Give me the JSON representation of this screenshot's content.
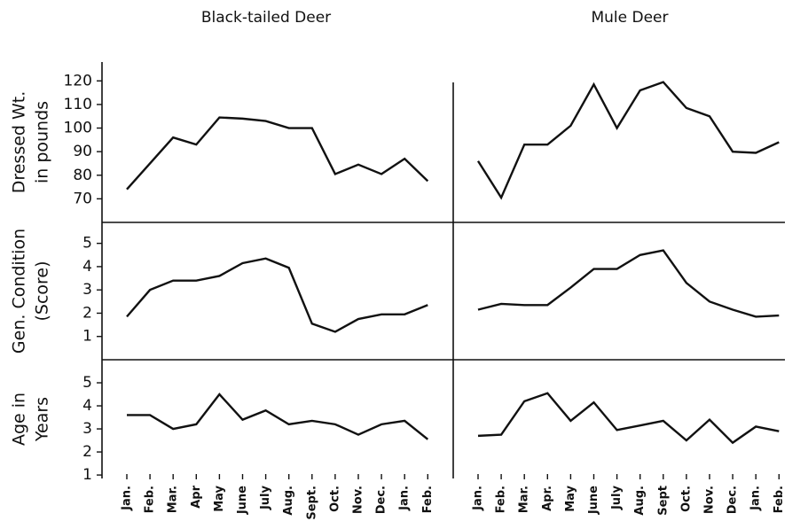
{
  "chart_data": {
    "type": "line",
    "color": "#111111",
    "columns": [
      {
        "title": "Black-tailed Deer",
        "categories": [
          "Jan.",
          "Feb.",
          "Mar.",
          "Apr",
          "May",
          "June",
          "July",
          "Aug.",
          "Sept.",
          "Oct.",
          "Nov.",
          "Dec.",
          "Jan.",
          "Feb."
        ]
      },
      {
        "title": "Mule Deer",
        "categories": [
          "Jan.",
          "Feb.",
          "Mar.",
          "Apr.",
          "May",
          "June",
          "July",
          "Aug.",
          "Sept",
          "Oct.",
          "Nov.",
          "Dec.",
          "Jan.",
          "Feb."
        ]
      }
    ],
    "rows": [
      {
        "ylabel": [
          "Dressed Wt.",
          "in pounds"
        ],
        "ylim": [
          60,
          128
        ],
        "yticks": [
          70,
          80,
          90,
          100,
          110,
          120
        ],
        "panels": [
          {
            "values": [
              74,
              85,
              96,
              93,
              104.5,
              104,
              103,
              100,
              100,
              80.5,
              84.5,
              80.5,
              87,
              77.5
            ]
          },
          {
            "values": [
              86,
              70.5,
              93,
              93,
              101,
              118.5,
              100,
              116,
              119.5,
              108.5,
              105,
              90,
              89.5,
              94
            ]
          }
        ]
      },
      {
        "ylabel": [
          "Gen. Condition",
          "(Score)"
        ],
        "ylim": [
          0,
          5.9
        ],
        "yticks": [
          1,
          2,
          3,
          4,
          5
        ],
        "panels": [
          {
            "values": [
              1.85,
              3.0,
              3.4,
              3.4,
              3.6,
              4.15,
              4.35,
              3.95,
              1.55,
              1.2,
              1.75,
              1.95,
              1.95,
              2.35
            ]
          },
          {
            "values": [
              2.15,
              2.4,
              2.35,
              2.35,
              3.1,
              3.9,
              3.9,
              4.5,
              4.7,
              3.3,
              2.5,
              2.15,
              1.85,
              1.9
            ]
          }
        ]
      },
      {
        "ylabel": [
          "Age in",
          "Years"
        ],
        "ylim": [
          0.85,
          6
        ],
        "yticks": [
          1,
          2,
          3,
          4,
          5
        ],
        "panels": [
          {
            "values": [
              3.6,
              3.6,
              3.0,
              3.2,
              4.5,
              3.4,
              3.8,
              3.2,
              3.35,
              3.2,
              2.75,
              3.2,
              3.35,
              2.55
            ]
          },
          {
            "values": [
              2.7,
              2.75,
              4.2,
              4.55,
              3.35,
              4.15,
              2.95,
              3.15,
              3.35,
              2.5,
              3.4,
              2.4,
              3.1,
              2.9
            ]
          }
        ]
      }
    ]
  }
}
